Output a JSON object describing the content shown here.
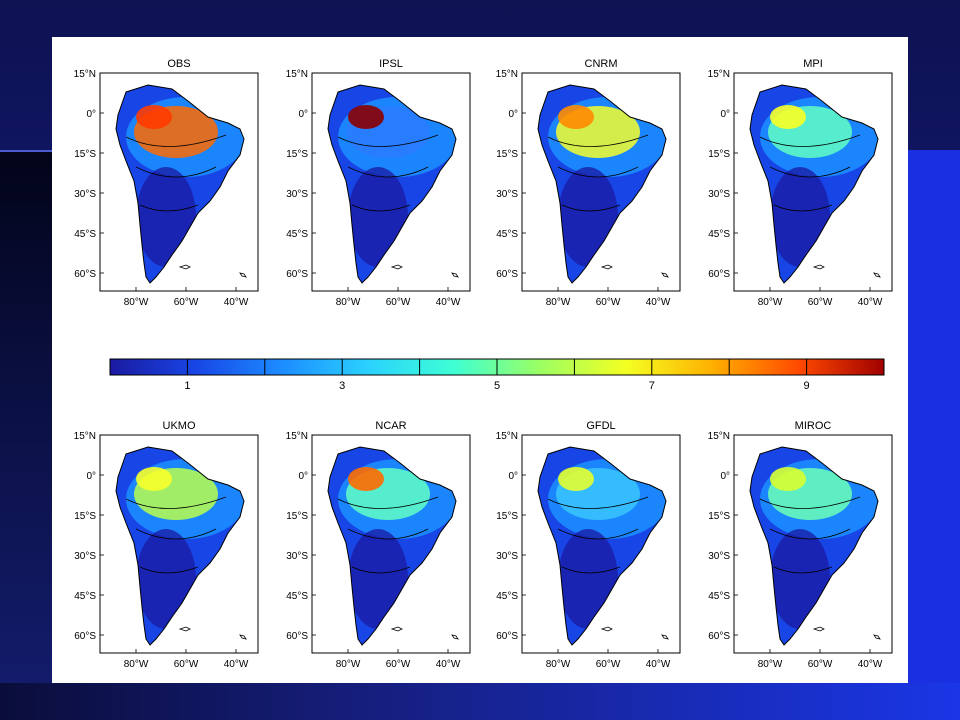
{
  "panels": [
    {
      "title": "OBS",
      "accent": "#ff6a00",
      "peak": "#ff3a00"
    },
    {
      "title": "IPSL",
      "accent": "#2a7bff",
      "peak": "#8b0000"
    },
    {
      "title": "CNRM",
      "accent": "#f6ff2a",
      "peak": "#ff8a00"
    },
    {
      "title": "MPI",
      "accent": "#5fffc5",
      "peak": "#fbff26"
    },
    {
      "title": "UKMO",
      "accent": "#b9ff4c",
      "peak": "#f7ff2a"
    },
    {
      "title": "NCAR",
      "accent": "#5fffc5",
      "peak": "#ff6a00"
    },
    {
      "title": "GFDL",
      "accent": "#38c6ff",
      "peak": "#e6ff30"
    },
    {
      "title": "MIROC",
      "accent": "#6bffb7",
      "peak": "#d9ff30"
    }
  ],
  "lat_labels": [
    "15°N",
    "0°",
    "15°S",
    "30°S",
    "45°S",
    "60°S"
  ],
  "lon_labels": [
    "80°W",
    "60°W",
    "40°W"
  ],
  "colorbar": {
    "tick_labels": [
      "1",
      "3",
      "5",
      "7",
      "9"
    ],
    "colors": [
      "#1a1aa0",
      "#1846e6",
      "#1c8cff",
      "#2ad1ff",
      "#3effd4",
      "#9cff63",
      "#f4ff22",
      "#ffb000",
      "#ff4a00",
      "#a00000"
    ]
  }
}
